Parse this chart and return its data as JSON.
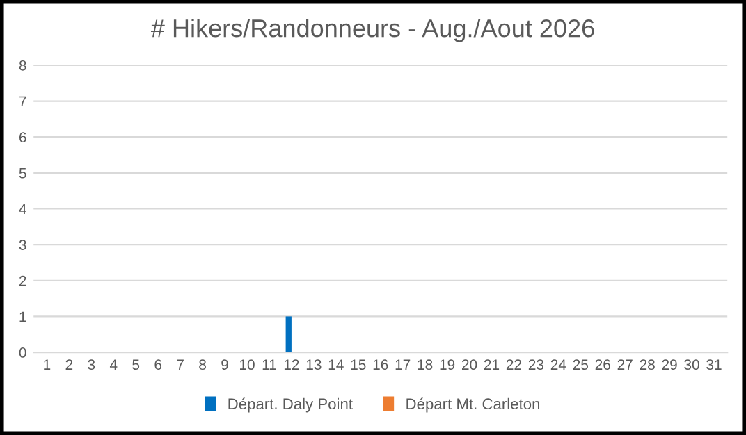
{
  "chart_data": {
    "type": "bar",
    "title": "# Hikers/Randonneurs - Aug./Aout 2026",
    "categories": [
      "1",
      "2",
      "3",
      "4",
      "5",
      "6",
      "7",
      "8",
      "9",
      "10",
      "11",
      "12",
      "13",
      "14",
      "15",
      "16",
      "17",
      "18",
      "19",
      "20",
      "21",
      "22",
      "23",
      "24",
      "25",
      "26",
      "27",
      "28",
      "29",
      "30",
      "31"
    ],
    "series": [
      {
        "name": "Départ. Daly Point",
        "color": "#0070c0",
        "values": [
          0,
          0,
          0,
          0,
          0,
          0,
          0,
          0,
          0,
          0,
          0,
          1,
          0,
          0,
          0,
          0,
          0,
          0,
          0,
          0,
          0,
          0,
          0,
          0,
          0,
          0,
          0,
          0,
          0,
          0,
          0
        ]
      },
      {
        "name": "Départ Mt. Carleton",
        "color": "#ed7d31",
        "values": [
          0,
          0,
          0,
          0,
          0,
          0,
          0,
          0,
          0,
          0,
          0,
          0,
          0,
          0,
          0,
          0,
          0,
          0,
          0,
          0,
          0,
          0,
          0,
          0,
          0,
          0,
          0,
          0,
          0,
          0,
          0
        ]
      }
    ],
    "ylim": [
      0,
      8
    ],
    "yticks": [
      0,
      1,
      2,
      3,
      4,
      5,
      6,
      7,
      8
    ],
    "grid": "y",
    "legend": "bottom"
  }
}
